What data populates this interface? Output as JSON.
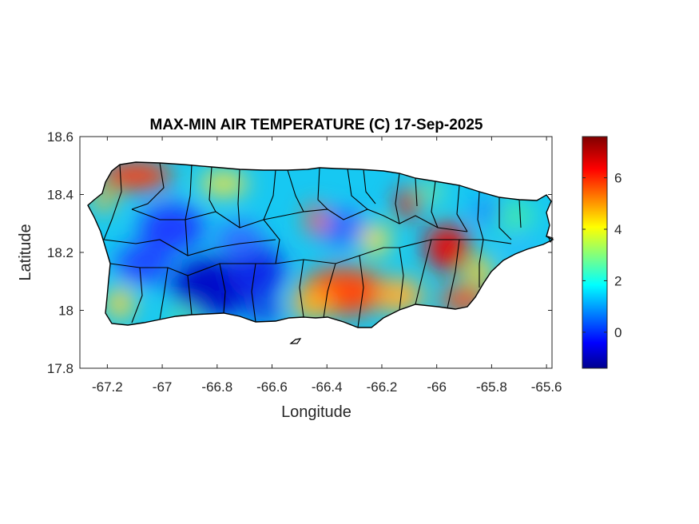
{
  "figure": {
    "title": "MAX-MIN AIR TEMPERATURE (C) 17-Sep-2025",
    "xlabel": "Longitude",
    "ylabel": "Latitude"
  },
  "chart_data": {
    "type": "heatmap",
    "title": "MAX-MIN AIR TEMPERATURE (C) 17-Sep-2025",
    "xlabel": "Longitude",
    "ylabel": "Latitude",
    "xlim": [
      -67.3,
      -65.58
    ],
    "ylim": [
      17.8,
      18.6
    ],
    "x_ticks": [
      -67.2,
      -67.0,
      -66.8,
      -66.6,
      -66.4,
      -66.2,
      -66.0,
      -65.8,
      -65.6
    ],
    "x_tick_labels": [
      "-67.2",
      "-67",
      "-66.8",
      "-66.6",
      "-66.4",
      "-66.2",
      "-66",
      "-65.8",
      "-65.6"
    ],
    "y_ticks": [
      17.8,
      18.0,
      18.2,
      18.4,
      18.6
    ],
    "y_tick_labels": [
      "17.8",
      "18",
      "18.2",
      "18.4",
      "18.6"
    ],
    "colormap": "jet",
    "colorbar": {
      "range": [
        -1.4,
        7.6
      ],
      "ticks": [
        0,
        2,
        4,
        6
      ],
      "tick_labels": [
        "0",
        "2",
        "4",
        "6"
      ],
      "colors": [
        "#00008f",
        "#0000ff",
        "#00ffff",
        "#ffff00",
        "#ff0000",
        "#800000"
      ]
    },
    "notable_regions": [
      {
        "lon": -67.05,
        "lat": 18.47,
        "value": 6
      },
      {
        "lon": -66.35,
        "lat": 18.06,
        "value": 6.5
      },
      {
        "lon": -65.95,
        "lat": 18.22,
        "value": 7
      },
      {
        "lon": -66.75,
        "lat": 18.05,
        "value": -1
      },
      {
        "lon": -67.05,
        "lat": 18.3,
        "value": 0
      }
    ]
  }
}
